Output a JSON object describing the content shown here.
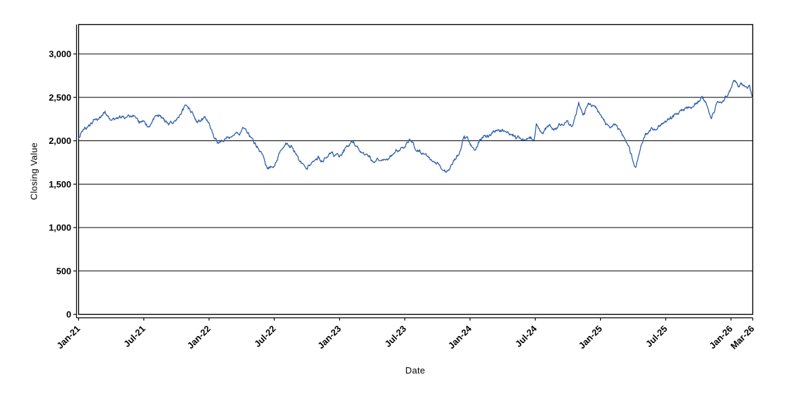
{
  "chart_data": {
    "type": "line",
    "title": "",
    "xlabel": "Date",
    "ylabel": "Closing Value",
    "legend": "none",
    "grid": "horizontal-only",
    "background": "#ffffff",
    "axis_color": "#000000",
    "grid_color": "#000000",
    "x_axis": {
      "kind": "date",
      "start_label": "Jan-21",
      "end_label": "Mar-26",
      "tick_labels": [
        "Jan-21",
        "Jul-21",
        "Jan-22",
        "Jul-22",
        "Jan-23",
        "Jul-23",
        "Jan-24",
        "Jul-24",
        "Jan-25",
        "Jul-25",
        "Jan-26",
        "Mar-26"
      ],
      "tick_months_from_start": [
        0,
        6,
        12,
        18,
        24,
        30,
        36,
        42,
        48,
        54,
        60,
        62
      ],
      "label_rotation_deg": -45
    },
    "y_axis": {
      "tick_values": [
        0,
        500,
        1000,
        1500,
        2000,
        2500,
        3000
      ],
      "tick_labels": [
        "0",
        "500",
        "1,000",
        "1,500",
        "2,000",
        "2,500",
        "3,000"
      ],
      "range": [
        0,
        3342
      ]
    },
    "series": [
      {
        "name": "Closing Value",
        "color": "#2f5fa8",
        "note": "Daily close series; anchor points below are values read from the plot, m = months after Jan-2021",
        "anchors": [
          [
            0,
            2040
          ],
          [
            0.5,
            2120
          ],
          [
            1,
            2160
          ],
          [
            1.5,
            2250
          ],
          [
            2,
            2270
          ],
          [
            2.4,
            2345
          ],
          [
            3,
            2230
          ],
          [
            4,
            2255
          ],
          [
            4.6,
            2295
          ],
          [
            5,
            2290
          ],
          [
            5.5,
            2215
          ],
          [
            6,
            2190
          ],
          [
            6.4,
            2150
          ],
          [
            7,
            2255
          ],
          [
            7.5,
            2280
          ],
          [
            8,
            2210
          ],
          [
            9,
            2230
          ],
          [
            9.4,
            2300
          ],
          [
            9.9,
            2425
          ],
          [
            10.4,
            2330
          ],
          [
            11,
            2210
          ],
          [
            11.6,
            2250
          ],
          [
            12,
            2185
          ],
          [
            12.5,
            2000
          ],
          [
            13,
            1960
          ],
          [
            13.5,
            2025
          ],
          [
            14,
            2035
          ],
          [
            14.5,
            2080
          ],
          [
            15,
            2110
          ],
          [
            15.3,
            2145
          ],
          [
            16,
            1990
          ],
          [
            16.8,
            1850
          ],
          [
            17.4,
            1650
          ],
          [
            18,
            1725
          ],
          [
            18.6,
            1915
          ],
          [
            19.1,
            2005
          ],
          [
            20,
            1855
          ],
          [
            20.5,
            1760
          ],
          [
            21,
            1680
          ],
          [
            21.5,
            1755
          ],
          [
            22,
            1815
          ],
          [
            22.5,
            1790
          ],
          [
            23,
            1835
          ],
          [
            24,
            1820
          ],
          [
            24.5,
            1900
          ],
          [
            25,
            1960
          ],
          [
            25.3,
            1990
          ],
          [
            26,
            1886
          ],
          [
            27,
            1745
          ],
          [
            27.5,
            1800
          ],
          [
            28,
            1775
          ],
          [
            29,
            1846
          ],
          [
            30,
            1940
          ],
          [
            30.5,
            1990
          ],
          [
            31,
            1894
          ],
          [
            32,
            1815
          ],
          [
            33,
            1735
          ],
          [
            33.8,
            1618
          ],
          [
            34.2,
            1680
          ],
          [
            35,
            1830
          ],
          [
            35.4,
            2045
          ],
          [
            36,
            1990
          ],
          [
            36.4,
            1900
          ],
          [
            37,
            2030
          ],
          [
            38,
            2070
          ],
          [
            39,
            2095
          ],
          [
            39.5,
            2060
          ],
          [
            40,
            2055
          ],
          [
            41,
            2005
          ],
          [
            41.5,
            1995
          ],
          [
            41.9,
            2030
          ],
          [
            42.1,
            2250
          ],
          [
            42.4,
            2180
          ],
          [
            42.7,
            2070
          ],
          [
            43.3,
            2200
          ],
          [
            43.7,
            2110
          ],
          [
            44,
            2135
          ],
          [
            44.5,
            2185
          ],
          [
            45,
            2225
          ],
          [
            45.4,
            2150
          ],
          [
            46,
            2420
          ],
          [
            46.4,
            2300
          ],
          [
            47,
            2435
          ],
          [
            47.5,
            2370
          ],
          [
            48,
            2300
          ],
          [
            48.6,
            2170
          ],
          [
            49,
            2135
          ],
          [
            49.4,
            2190
          ],
          [
            50,
            2055
          ],
          [
            50.6,
            1930
          ],
          [
            51,
            1790
          ],
          [
            51.2,
            1735
          ],
          [
            51.6,
            1880
          ],
          [
            52,
            2010
          ],
          [
            52.5,
            2090
          ],
          [
            53,
            2150
          ],
          [
            54,
            2215
          ],
          [
            55,
            2310
          ],
          [
            56,
            2400
          ],
          [
            57,
            2460
          ],
          [
            57.4,
            2490
          ],
          [
            58.2,
            2265
          ],
          [
            58.8,
            2445
          ],
          [
            59.2,
            2470
          ],
          [
            59.6,
            2510
          ],
          [
            60,
            2600
          ],
          [
            60.4,
            2685
          ],
          [
            60.7,
            2595
          ],
          [
            61,
            2650
          ],
          [
            61.3,
            2615
          ],
          [
            61.7,
            2655
          ],
          [
            62,
            2515
          ]
        ]
      }
    ]
  }
}
